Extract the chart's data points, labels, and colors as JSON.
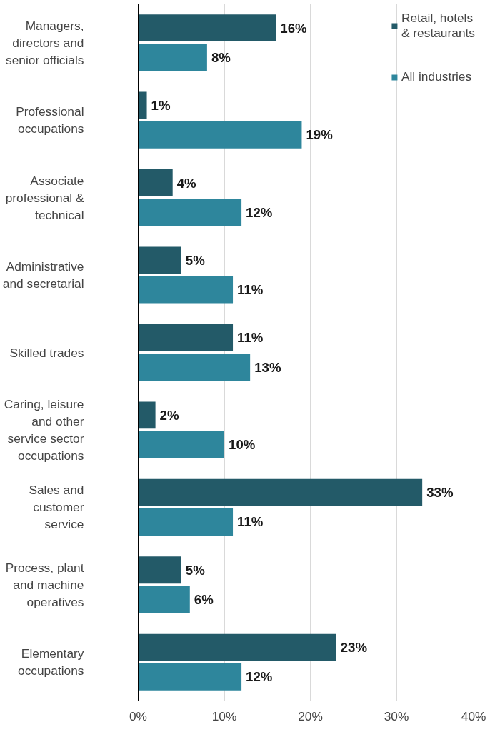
{
  "chart_data": {
    "type": "bar",
    "orientation": "horizontal",
    "categories": [
      "Managers,\ndirectors and\nsenior officials",
      "Professional\noccupations",
      "Associate\nprofessional &\ntechnical",
      "Administrative\nand secretarial",
      "Skilled trades",
      "Caring, leisure\nand other\nservice sector\noccupations",
      "Sales and\ncustomer\nservice",
      "Process, plant\nand machine\noperatives",
      "Elementary\noccupations"
    ],
    "series": [
      {
        "name": "Retail, hotels\n& restaurants",
        "color": "#235a68",
        "values": [
          16,
          1,
          4,
          5,
          11,
          2,
          33,
          5,
          23
        ],
        "value_labels": [
          "16%",
          "1%",
          "4%",
          "5%",
          "11%",
          "2%",
          "33%",
          "5%",
          "23%"
        ]
      },
      {
        "name": "All industries",
        "color": "#2e869c",
        "values": [
          8,
          19,
          12,
          11,
          13,
          10,
          11,
          6,
          12
        ],
        "value_labels": [
          "8%",
          "19%",
          "12%",
          "11%",
          "13%",
          "10%",
          "11%",
          "6%",
          "12%"
        ]
      }
    ],
    "xlim": [
      0,
      40
    ],
    "xticks": [
      {
        "value": 0,
        "label": "0%"
      },
      {
        "value": 10,
        "label": "10%"
      },
      {
        "value": 20,
        "label": "20%"
      },
      {
        "value": 30,
        "label": "30%"
      },
      {
        "value": 40,
        "label": "40%"
      }
    ],
    "grid": "x",
    "legend": "top right"
  }
}
